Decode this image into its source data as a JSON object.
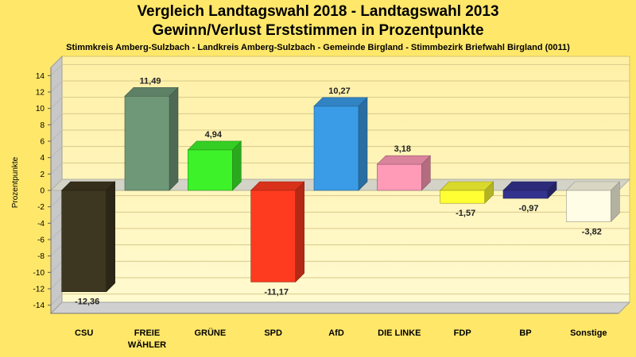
{
  "title": "Vergleich Landtagswahl 2018 - Landtagswahl 2013",
  "subtitle": "Gewinn/Verlust Erststimmen in Prozentpunkte",
  "region": "Stimmkreis Amberg-Sulzbach - Landkreis Amberg-Sulzbach - Gemeinde Birgland - Stimmbezirk Briefwahl Birgland (0011)",
  "chart_data": {
    "type": "bar",
    "ylabel": "Prozentpunkte",
    "xlabel": "",
    "ylim": [
      -15,
      15
    ],
    "yticks": [
      14,
      12,
      10,
      8,
      6,
      4,
      2,
      0,
      -2,
      -4,
      -6,
      -8,
      -10,
      -12,
      -14
    ],
    "grid": true,
    "categories": [
      [
        "CSU"
      ],
      [
        "FREIE",
        "WÄHLER"
      ],
      [
        "GRÜNE"
      ],
      [
        "SPD"
      ],
      [
        "AfD"
      ],
      [
        "DIE LINKE"
      ],
      [
        "FDP"
      ],
      [
        "BP"
      ],
      [
        "Sonstige"
      ]
    ],
    "values": [
      -12.36,
      11.49,
      4.94,
      -11.17,
      10.27,
      3.18,
      -1.57,
      -0.97,
      -3.82
    ],
    "labels": [
      "-12,36",
      "11,49",
      "4,94",
      "-11,17",
      "10,27",
      "3,18",
      "-1,57",
      "-0,97",
      "-3,82"
    ],
    "colors": [
      "#3d3620",
      "#6f9878",
      "#3ef22a",
      "#ff3b1f",
      "#3a9be6",
      "#ff9ab7",
      "#ffff33",
      "#33338f",
      "#fffde5"
    ]
  }
}
